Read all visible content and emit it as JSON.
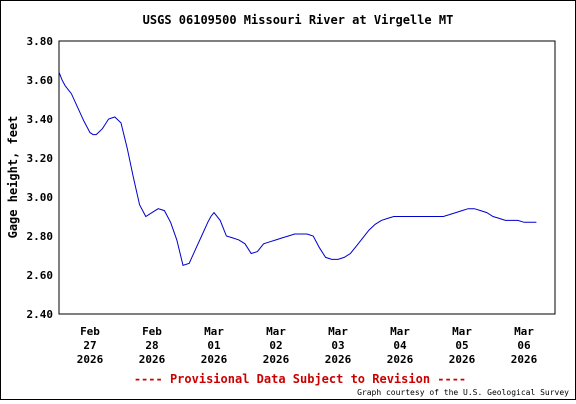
{
  "chart_data": {
    "type": "line",
    "title": "USGS 06109500 Missouri River at Virgelle MT",
    "ylabel": "Gage height, feet",
    "xlabel": "",
    "ylim": [
      2.4,
      3.8
    ],
    "yticks": [
      "2.40",
      "2.60",
      "2.80",
      "3.00",
      "3.20",
      "3.40",
      "3.60",
      "3.80"
    ],
    "xlim": [
      0,
      8
    ],
    "x_tick_labels": [
      {
        "x": 0.5,
        "lines": [
          "Feb",
          "27",
          "2026"
        ]
      },
      {
        "x": 1.5,
        "lines": [
          "Feb",
          "28",
          "2026"
        ]
      },
      {
        "x": 2.5,
        "lines": [
          "Mar",
          "01",
          "2026"
        ]
      },
      {
        "x": 3.5,
        "lines": [
          "Mar",
          "02",
          "2026"
        ]
      },
      {
        "x": 4.5,
        "lines": [
          "Mar",
          "03",
          "2026"
        ]
      },
      {
        "x": 5.5,
        "lines": [
          "Mar",
          "04",
          "2026"
        ]
      },
      {
        "x": 6.5,
        "lines": [
          "Mar",
          "05",
          "2026"
        ]
      },
      {
        "x": 7.5,
        "lines": [
          "Mar",
          "06",
          "2026"
        ]
      }
    ],
    "grid": true,
    "series": [
      {
        "color": "#0000cc",
        "x": [
          0.0,
          0.05,
          0.1,
          0.2,
          0.3,
          0.4,
          0.5,
          0.55,
          0.6,
          0.7,
          0.8,
          0.9,
          1.0,
          1.1,
          1.2,
          1.3,
          1.4,
          1.5,
          1.6,
          1.7,
          1.8,
          1.9,
          2.0,
          2.1,
          2.2,
          2.3,
          2.4,
          2.45,
          2.5,
          2.6,
          2.7,
          2.8,
          2.9,
          3.0,
          3.1,
          3.2,
          3.3,
          3.4,
          3.5,
          3.6,
          3.7,
          3.8,
          3.9,
          4.0,
          4.1,
          4.2,
          4.3,
          4.4,
          4.5,
          4.6,
          4.7,
          4.8,
          4.9,
          5.0,
          5.1,
          5.2,
          5.3,
          5.4,
          5.5,
          5.6,
          5.7,
          5.8,
          5.9,
          6.0,
          6.2,
          6.4,
          6.5,
          6.6,
          6.7,
          6.8,
          6.9,
          7.0,
          7.1,
          7.2,
          7.3,
          7.4,
          7.5,
          7.6,
          7.7
        ],
        "y": [
          3.64,
          3.6,
          3.57,
          3.53,
          3.46,
          3.39,
          3.33,
          3.32,
          3.32,
          3.35,
          3.4,
          3.41,
          3.38,
          3.25,
          3.1,
          2.96,
          2.9,
          2.92,
          2.94,
          2.93,
          2.87,
          2.78,
          2.65,
          2.66,
          2.73,
          2.8,
          2.87,
          2.9,
          2.92,
          2.88,
          2.8,
          2.79,
          2.78,
          2.76,
          2.71,
          2.72,
          2.76,
          2.77,
          2.78,
          2.79,
          2.8,
          2.81,
          2.81,
          2.81,
          2.8,
          2.74,
          2.69,
          2.68,
          2.68,
          2.69,
          2.71,
          2.75,
          2.79,
          2.83,
          2.86,
          2.88,
          2.89,
          2.9,
          2.9,
          2.9,
          2.9,
          2.9,
          2.9,
          2.9,
          2.9,
          2.92,
          2.93,
          2.94,
          2.94,
          2.93,
          2.92,
          2.9,
          2.89,
          2.88,
          2.88,
          2.88,
          2.87,
          2.87,
          2.87
        ]
      }
    ]
  },
  "notice": {
    "text": "---- Provisional Data Subject to Revision ----",
    "color": "#cc0000"
  },
  "credit": "Graph courtesy of the U.S. Geological Survey"
}
